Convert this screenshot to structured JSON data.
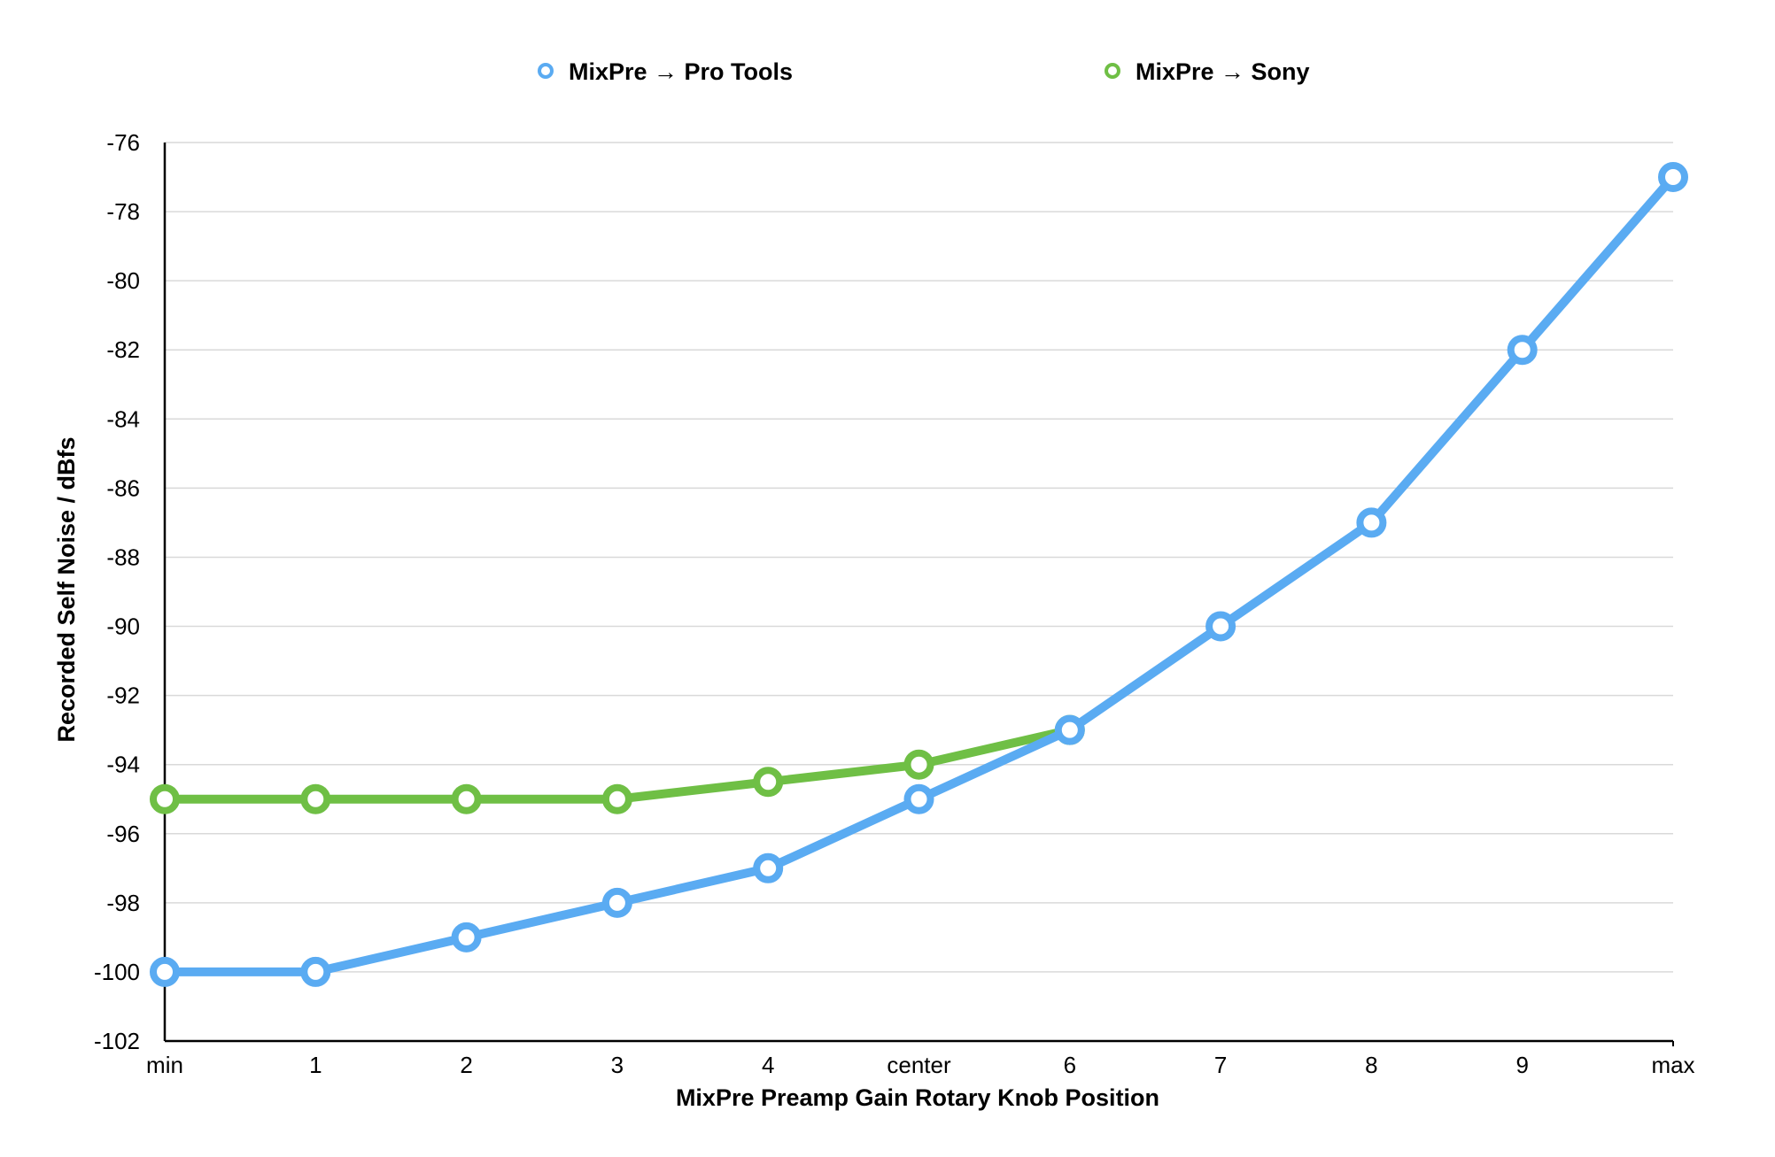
{
  "chart_data": {
    "type": "line",
    "categories": [
      "min",
      "1",
      "2",
      "3",
      "4",
      "center",
      "6",
      "7",
      "8",
      "9",
      "max"
    ],
    "xlabel": "MixPre Preamp Gain Rotary Knob Position",
    "ylabel": "Recorded Self Noise / dBfs",
    "ylim": [
      -102,
      -76
    ],
    "yticks": [
      -76,
      -78,
      -80,
      -82,
      -84,
      -86,
      -88,
      -90,
      -92,
      -94,
      -96,
      -98,
      -100,
      -102
    ],
    "grid": true,
    "legend_position": "top",
    "series": [
      {
        "name": "MixPre → Pro Tools",
        "color": "#5aabf2",
        "values": [
          -100,
          -100,
          -99,
          -98,
          -97,
          -95,
          -93,
          -90,
          -87,
          -82,
          -77
        ]
      },
      {
        "name": "MixPre → Sony",
        "color": "#6fbf45",
        "values": [
          -95,
          -95,
          -95,
          -95,
          -94.5,
          -94,
          -93,
          null,
          null,
          null,
          null
        ]
      }
    ]
  }
}
